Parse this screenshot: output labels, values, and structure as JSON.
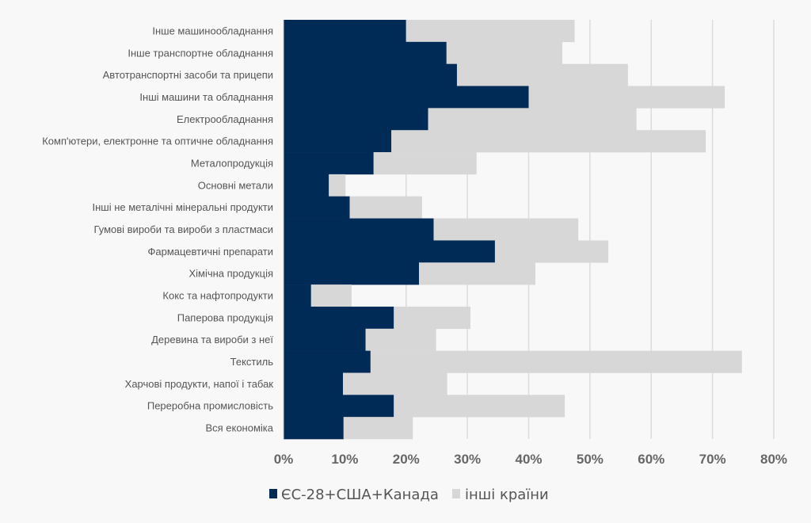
{
  "chart_data": {
    "type": "bar",
    "orientation": "horizontal",
    "stacked": true,
    "title": "",
    "xlabel": "",
    "ylabel": "",
    "xlim": [
      0,
      80
    ],
    "x_ticks": [
      "0%",
      "10%",
      "20%",
      "30%",
      "40%",
      "50%",
      "60%",
      "70%",
      "80%"
    ],
    "grid": true,
    "legend_position": "bottom",
    "categories": [
      "Інше машинообладнання",
      "Інше транспортне обладнання",
      "Автотранспортні засоби та прицепи",
      "Інші машини та обладнання",
      "Електрообладнання",
      "Комп'ютери, електронне та оптичне обладнання",
      "Металопродукція",
      "Основні метали",
      "Інші не металічні мінеральні продукти",
      "Гумові вироби та вироби з пластмаси",
      "Фармацевтичні препарати",
      "Хімічна продукція",
      "Кокс та нафтопродукти",
      "Паперова продукція",
      "Деревина та вироби з неї",
      "Текстиль",
      "Харчові продукти, напої і табак",
      "Переробна промисловість",
      "Вся економіка"
    ],
    "series": [
      {
        "name": "ЄС-28+США+Канада",
        "color": "#002b57",
        "values": [
          20.0,
          26.6,
          28.3,
          40.0,
          23.6,
          17.6,
          14.7,
          7.4,
          10.8,
          24.5,
          34.5,
          22.1,
          4.5,
          18.0,
          13.4,
          14.2,
          9.7,
          18.0,
          9.8
        ]
      },
      {
        "name": "інші країни",
        "color": "#d7d7d7",
        "values": [
          27.5,
          18.9,
          27.9,
          32.0,
          34.0,
          51.3,
          16.8,
          2.7,
          11.8,
          23.6,
          18.5,
          19.0,
          6.6,
          12.5,
          11.5,
          60.6,
          17.0,
          27.9,
          11.3
        ]
      }
    ]
  }
}
